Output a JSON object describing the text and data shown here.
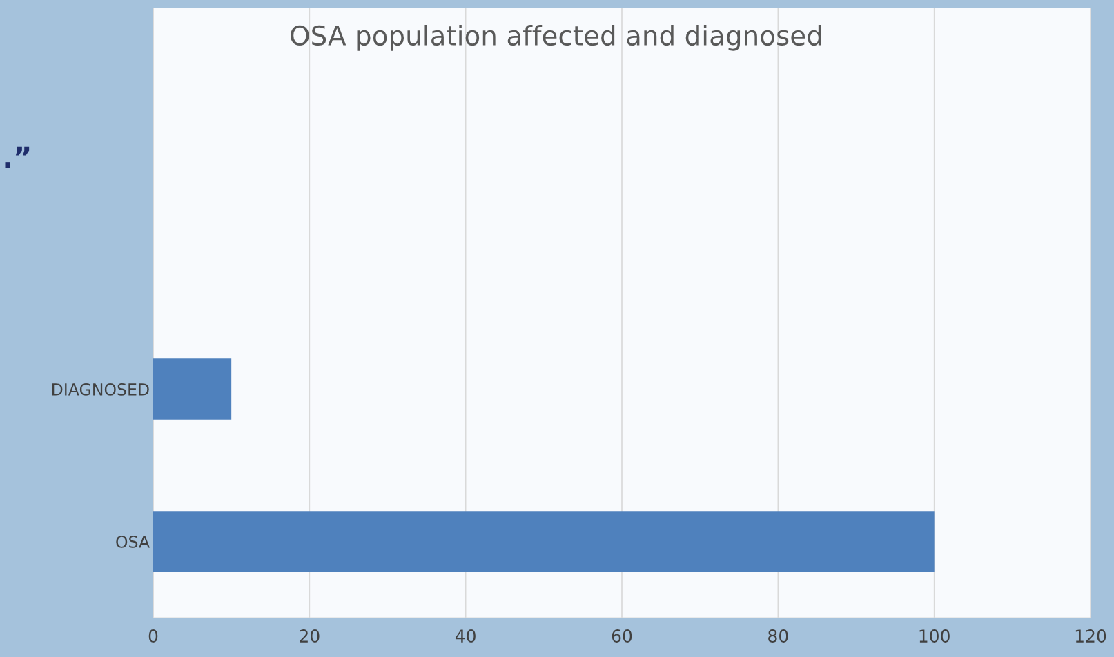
{
  "chart_data": {
    "type": "bar",
    "orientation": "horizontal",
    "title": "OSA population affected and diagnosed",
    "categories": [
      null,
      null,
      "DIAGNOSED",
      "OSA"
    ],
    "values": [
      null,
      null,
      10,
      100
    ],
    "color": "#4f81bd",
    "xlim": [
      0,
      120
    ],
    "xticks": [
      0,
      20,
      40,
      60,
      80,
      100,
      120
    ],
    "grid": "x",
    "annotations": [
      ".”"
    ]
  }
}
